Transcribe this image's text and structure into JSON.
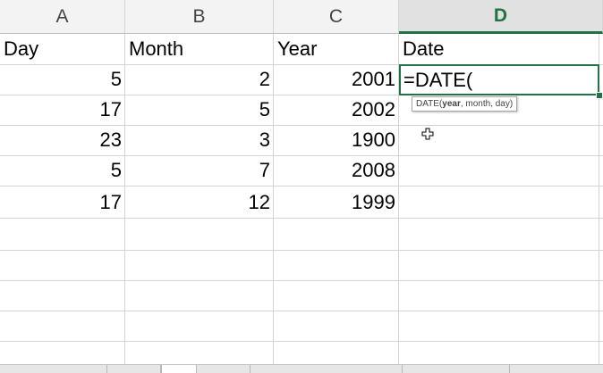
{
  "columns": [
    "A",
    "B",
    "C",
    "D"
  ],
  "active_column": "D",
  "headers": [
    "Day",
    "Month",
    "Year",
    "Date"
  ],
  "rows": [
    {
      "day": "5",
      "month": "2",
      "year": "2001"
    },
    {
      "day": "17",
      "month": "5",
      "year": "2002"
    },
    {
      "day": "23",
      "month": "3",
      "year": "1900"
    },
    {
      "day": "5",
      "month": "7",
      "year": "2008"
    },
    {
      "day": "17",
      "month": "12",
      "year": "1999"
    }
  ],
  "editing": {
    "formula": "=DATE(",
    "tooltip": {
      "prefix": "DATE(",
      "current_arg": "year",
      "rest": ", month, day)"
    }
  },
  "colors": {
    "accent": "#217346",
    "grid": "#d4d4d4",
    "header_bg": "#f3f3f3"
  },
  "icons": {
    "cursor": "cross-cursor-icon"
  }
}
